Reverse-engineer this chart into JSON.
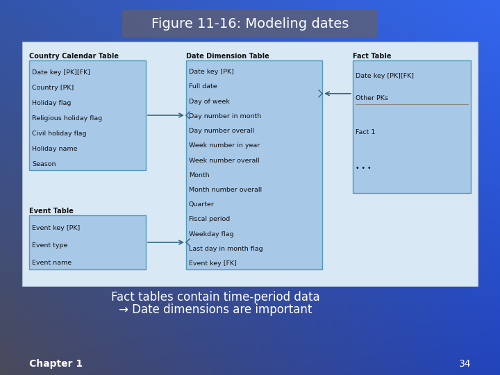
{
  "title": "Figure 11-16: Modeling dates",
  "title_color": "#FFFFFF",
  "title_fontsize": 14,
  "box_fill": "#A8C8E8",
  "box_edge": "#5599BB",
  "text_color": "#111111",
  "panel_bg": "#D8E8F5",
  "country_calendar_label": "Country Calendar Table",
  "country_calendar_fields": [
    "Date key [PK][FK]",
    "Country [PK]",
    "Holiday flag",
    "Religious holiday flag",
    "Civil holiday flag",
    "Holiday name",
    "Season"
  ],
  "event_label": "Event Table",
  "event_fields": [
    "Event key [PK]",
    "Event type",
    "Event name"
  ],
  "date_dim_label": "Date Dimension Table",
  "date_dim_fields": [
    "Date key [PK]",
    "Full date",
    "Day of week",
    "Day number in month",
    "Day number overall",
    "Week number in year",
    "Week number overall",
    "Month",
    "Month number overall",
    "Quarter",
    "Fiscal period",
    "Weekday flag",
    "Last day in month flag",
    "Event key [FK]"
  ],
  "fact_label": "Fact Table",
  "fact_fields_top": [
    "Date key [PK][FK]",
    "Other PKs"
  ],
  "fact_fields_bottom": [
    "Fact 1",
    "• • •"
  ],
  "bullet_line1": "Fact tables contain time-period data",
  "bullet_line2": "→ Date dimensions are important",
  "chapter_text": "Chapter 1",
  "page_number": "34"
}
